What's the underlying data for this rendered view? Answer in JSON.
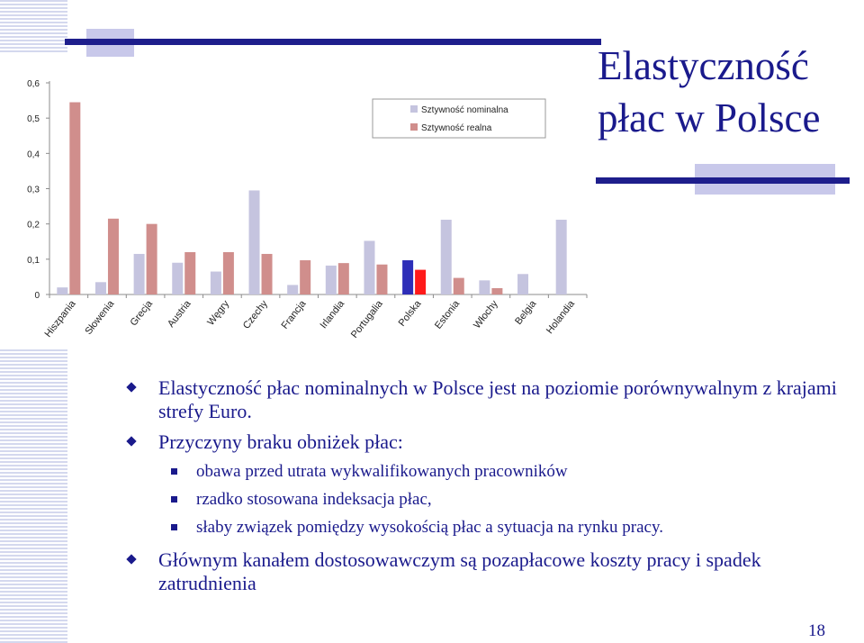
{
  "slide": {
    "title_line1": "Elastyczność",
    "title_line2": "płac w Polsce",
    "page_number": "18"
  },
  "bullets": [
    {
      "text": "Elastyczność płac nominalnych w Polsce jest na poziomie porównywalnym z krajami strefy Euro."
    },
    {
      "text": "Przyczyny braku obniżek płac:",
      "sub": [
        "obawa przed utrata wykwalifikowanych pracowników",
        "rzadko stosowana indeksacja płac,",
        "słaby związek pomiędzy wysokością płac a sytuacja na rynku pracy."
      ]
    },
    {
      "text": "Głównym kanałem dostosowawczym są pozapłacowe koszty pracy i spadek zatrudnienia"
    }
  ],
  "colors": {
    "title": "#1a1a8c",
    "nominal": "#c5c4df",
    "real": "#d08e8c",
    "poland_nominal": "#2e2eb8",
    "poland_real": "#ff1a1a",
    "deco_light": "#c8c8ea",
    "deco_dark": "#1e1e8c"
  },
  "chart_data": {
    "type": "bar",
    "categories": [
      "Hiszpania",
      "Słowenia",
      "Grecja",
      "Austria",
      "Węgry",
      "Czechy",
      "Francja",
      "Irlandia",
      "Portugalia",
      "Polska",
      "Estonia",
      "Włochy",
      "Belgia",
      "Holandia"
    ],
    "highlight_category": "Polska",
    "series": [
      {
        "name": "Sztywność nominalna",
        "values": [
          0.02,
          0.035,
          0.115,
          0.09,
          0.065,
          0.295,
          0.027,
          0.082,
          0.152,
          0.097,
          0.212,
          0.04,
          0.058,
          0.212
        ]
      },
      {
        "name": "Sztywność realna",
        "values": [
          0.545,
          0.215,
          0.2,
          0.12,
          0.12,
          0.115,
          0.097,
          0.089,
          0.085,
          0.07,
          0.047,
          0.018,
          null,
          null
        ]
      }
    ],
    "yticks": [
      "0",
      "0,1",
      "0,2",
      "0,3",
      "0,4",
      "0,5",
      "0,6"
    ],
    "ylim": [
      0,
      0.6
    ],
    "legend_position": "top-right",
    "grid": false
  }
}
